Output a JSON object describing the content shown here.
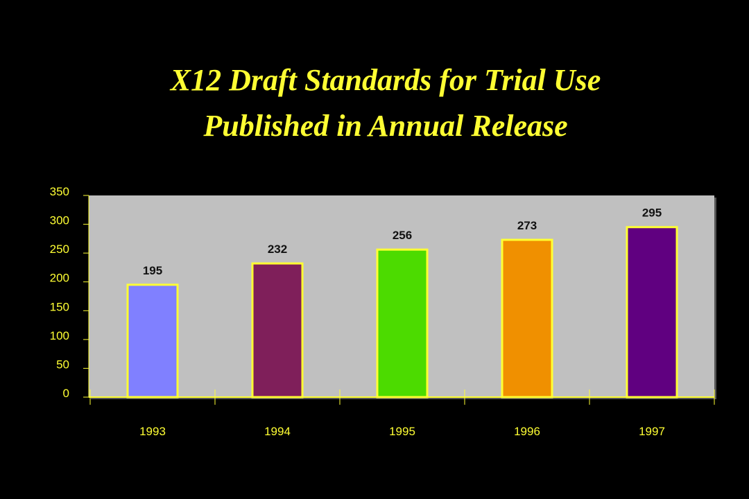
{
  "chart_data": {
    "type": "bar",
    "title": [
      "X12 Draft Standards for Trial Use",
      "Published in Annual Release"
    ],
    "categories": [
      "1993",
      "1994",
      "1995",
      "1996",
      "1997"
    ],
    "values": [
      195,
      232,
      256,
      273,
      295
    ],
    "colors": [
      "#8080ff",
      "#7f1f5a",
      "#4cdb00",
      "#f09000",
      "#600080"
    ],
    "outline": "#ffff33",
    "ylim": [
      0,
      350
    ],
    "yticks": [
      0,
      50,
      100,
      150,
      200,
      250,
      300,
      350
    ],
    "grid": false
  }
}
